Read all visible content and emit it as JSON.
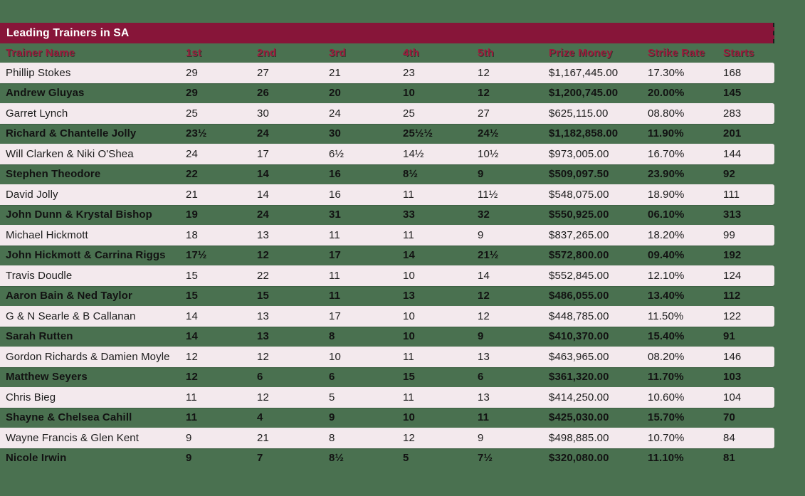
{
  "ui": {
    "colors": {
      "background_green": "#4a7150",
      "title_bar_maroon": "#871539",
      "header_text_red": "#9e1c3d",
      "row_alt_pink": "#f3e9ed",
      "row_text": "#1c1c1c"
    }
  },
  "chart_data": {
    "type": "table",
    "title": "Leading Trainers in SA",
    "columns": [
      "Trainer Name",
      "1st",
      "2nd",
      "3rd",
      "4th",
      "5th",
      "Prize Money",
      "Strike Rate",
      "Starts"
    ],
    "rows": [
      [
        "Phillip Stokes",
        "29",
        "27",
        "21",
        "23",
        "12",
        "$1,167,445.00",
        "17.30%",
        "168"
      ],
      [
        "Andrew Gluyas",
        "29",
        "26",
        "20",
        "10",
        "12",
        "$1,200,745.00",
        "20.00%",
        "145"
      ],
      [
        "Garret Lynch",
        "25",
        "30",
        "24",
        "25",
        "27",
        "$625,115.00",
        "08.80%",
        "283"
      ],
      [
        "Richard & Chantelle Jolly",
        "23½",
        "24",
        "30",
        "25½½",
        "24½",
        "$1,182,858.00",
        "11.90%",
        "201"
      ],
      [
        "Will Clarken & Niki O'Shea",
        "24",
        "17",
        "6½",
        "14½",
        "10½",
        "$973,005.00",
        "16.70%",
        "144"
      ],
      [
        "Stephen Theodore",
        "22",
        "14",
        "16",
        "8½",
        "9",
        "$509,097.50",
        "23.90%",
        "92"
      ],
      [
        "David Jolly",
        "21",
        "14",
        "16",
        "11",
        "11½",
        "$548,075.00",
        "18.90%",
        "111"
      ],
      [
        "John Dunn & Krystal Bishop",
        "19",
        "24",
        "31",
        "33",
        "32",
        "$550,925.00",
        "06.10%",
        "313"
      ],
      [
        "Michael Hickmott",
        "18",
        "13",
        "11",
        "11",
        "9",
        "$837,265.00",
        "18.20%",
        "99"
      ],
      [
        "John Hickmott & Carrina Riggs",
        "17½",
        "12",
        "17",
        "14",
        "21½",
        "$572,800.00",
        "09.40%",
        "192"
      ],
      [
        "Travis Doudle",
        "15",
        "22",
        "11",
        "10",
        "14",
        "$552,845.00",
        "12.10%",
        "124"
      ],
      [
        "Aaron Bain & Ned Taylor",
        "15",
        "15",
        "11",
        "13",
        "12",
        "$486,055.00",
        "13.40%",
        "112"
      ],
      [
        "G & N Searle & B Callanan",
        "14",
        "13",
        "17",
        "10",
        "12",
        "$448,785.00",
        "11.50%",
        "122"
      ],
      [
        "Sarah Rutten",
        "14",
        "13",
        "8",
        "10",
        "9",
        "$410,370.00",
        "15.40%",
        "91"
      ],
      [
        "Gordon Richards & Damien Moyle",
        "12",
        "12",
        "10",
        "11",
        "13",
        "$463,965.00",
        "08.20%",
        "146"
      ],
      [
        "Matthew Seyers",
        "12",
        "6",
        "6",
        "15",
        "6",
        "$361,320.00",
        "11.70%",
        "103"
      ],
      [
        "Chris Bieg",
        "11",
        "12",
        "5",
        "11",
        "13",
        "$414,250.00",
        "10.60%",
        "104"
      ],
      [
        "Shayne & Chelsea Cahill",
        "11",
        "4",
        "9",
        "10",
        "11",
        "$425,030.00",
        "15.70%",
        "70"
      ],
      [
        "Wayne Francis & Glen Kent",
        "9",
        "21",
        "8",
        "12",
        "9",
        "$498,885.00",
        "10.70%",
        "84"
      ],
      [
        "Nicole Irwin",
        "9",
        "7",
        "8½",
        "5",
        "7½",
        "$320,080.00",
        "11.10%",
        "81"
      ]
    ]
  }
}
